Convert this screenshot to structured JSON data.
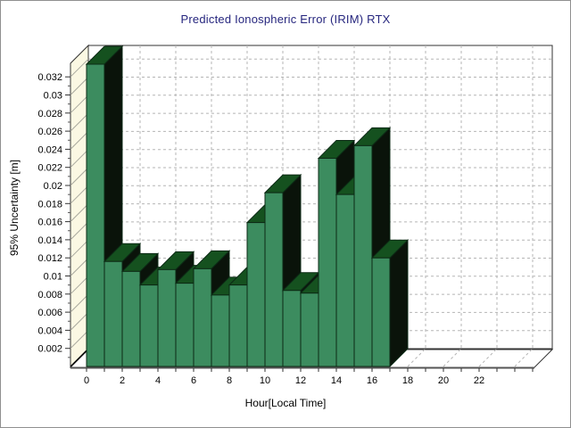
{
  "window": {
    "background": "#ffffff",
    "border_color": "#8f8f8f"
  },
  "chart_data": {
    "type": "bar",
    "projection": "3d",
    "title": "Predicted Ionospheric Error (IRIM) RTX",
    "xlabel": "Hour[Local Time]",
    "ylabel": "95% Uncertainty [m]",
    "categories": [
      0,
      1,
      2,
      3,
      4,
      5,
      6,
      7,
      8,
      9,
      10,
      11,
      12,
      13,
      14,
      15,
      16
    ],
    "bar_span_hours": 1,
    "values": [
      0.0334,
      0.0116,
      0.0105,
      0.009,
      0.0107,
      0.0092,
      0.0108,
      0.0079,
      0.009,
      0.0159,
      0.0192,
      0.0084,
      0.0081,
      0.023,
      0.019,
      0.0244,
      0.012
    ],
    "xlim": [
      0,
      26
    ],
    "ylim": [
      0,
      0.0335
    ],
    "x_tick_labels": [
      "0",
      "2",
      "4",
      "6",
      "8",
      "10",
      "12",
      "14",
      "16",
      "18",
      "20",
      "22"
    ],
    "x_tick_values": [
      0,
      2,
      4,
      6,
      8,
      10,
      12,
      14,
      16,
      18,
      20,
      22
    ],
    "y_tick_values": [
      0.002,
      0.004,
      0.006,
      0.008,
      0.01,
      0.012,
      0.014,
      0.016,
      0.018,
      0.02,
      0.022,
      0.024,
      0.026,
      0.028,
      0.03,
      0.032
    ],
    "y_tick_labels": [
      "0.002",
      "0.004",
      "0.006",
      "0.008",
      "0.01",
      "0.012",
      "0.014",
      "0.016",
      "0.018",
      "0.02",
      "0.022",
      "0.024",
      "0.026",
      "0.028",
      "0.03",
      "0.032"
    ],
    "grid": "dashed",
    "legend": "none",
    "colors": {
      "title": "#26267e",
      "bar_front": "#3c8c5f",
      "bar_top": "#15511f",
      "bar_side": "#0a130a",
      "bar_stroke": "#0c2a15",
      "wall_left": "#fbf8e3",
      "wall_back": "#ffffff",
      "wall_hatch": "#a8a89d",
      "grid_line": "#b5b5b5",
      "axis_line": "#555555",
      "tick_text": "#000000",
      "outline": "#333333"
    }
  }
}
